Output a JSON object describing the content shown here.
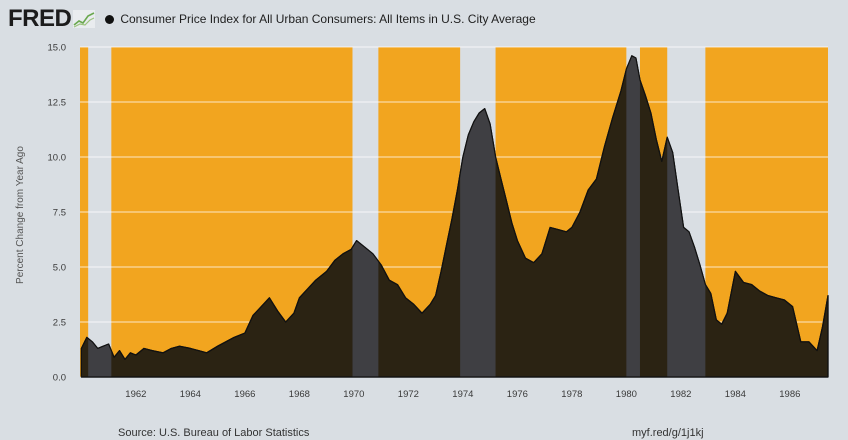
{
  "header": {
    "logo_text": "FRED",
    "series_title": "Consumer Price Index for All Urban Consumers: All Items in U.S. City Average"
  },
  "footer": {
    "source": "Source: U.S. Bureau of Labor Statistics",
    "link": "myf.red/g/1j1kj"
  },
  "colors": {
    "background": "#d9dee3",
    "expansion_band": "#f2a51f",
    "recession_band": "#d9dee3",
    "area_fill": "#2b2313",
    "area_fill_recession": "#3f3f43",
    "line": "#111111",
    "grid": "#ffffff"
  },
  "chart_data": {
    "type": "area",
    "title": "Consumer Price Index for All Urban Consumers: All Items in U.S. City Average",
    "ylabel": "Percent Change from Year Ago",
    "xlabel": "",
    "xlim": [
      1959.95,
      1987.4
    ],
    "ylim": [
      0,
      15
    ],
    "y_ticks": [
      "0.0",
      "2.5",
      "5.0",
      "7.5",
      "10.0",
      "12.5",
      "15.0"
    ],
    "x_ticks": [
      "1962",
      "1964",
      "1966",
      "1968",
      "1970",
      "1972",
      "1974",
      "1976",
      "1978",
      "1980",
      "1982",
      "1984",
      "1986"
    ],
    "grid": true,
    "recessions": [
      {
        "start": 1960.25,
        "end": 1961.1
      },
      {
        "start": 1969.95,
        "end": 1970.9
      },
      {
        "start": 1973.9,
        "end": 1975.2
      },
      {
        "start": 1980.0,
        "end": 1980.5
      },
      {
        "start": 1981.5,
        "end": 1982.9
      }
    ],
    "series": [
      {
        "x": [
          1960.0,
          1960.2,
          1960.4,
          1960.6,
          1960.8,
          1961.0,
          1961.2,
          1961.4,
          1961.6,
          1961.8,
          1962.0,
          1962.3,
          1962.6,
          1963.0,
          1963.3,
          1963.6,
          1964.0,
          1964.3,
          1964.6,
          1965.0,
          1965.3,
          1965.6,
          1966.0,
          1966.3,
          1966.6,
          1966.9,
          1967.2,
          1967.5,
          1967.8,
          1968.0,
          1968.3,
          1968.6,
          1969.0,
          1969.3,
          1969.6,
          1969.9,
          1970.1,
          1970.4,
          1970.7,
          1971.0,
          1971.3,
          1971.6,
          1971.9,
          1972.2,
          1972.5,
          1972.8,
          1973.0,
          1973.2,
          1973.4,
          1973.6,
          1973.8,
          1974.0,
          1974.2,
          1974.4,
          1974.6,
          1974.8,
          1975.0,
          1975.2,
          1975.4,
          1975.6,
          1975.8,
          1976.0,
          1976.3,
          1976.6,
          1976.9,
          1977.2,
          1977.5,
          1977.8,
          1978.0,
          1978.3,
          1978.6,
          1978.9,
          1979.2,
          1979.5,
          1979.8,
          1980.0,
          1980.2,
          1980.35,
          1980.5,
          1980.7,
          1980.9,
          1981.1,
          1981.3,
          1981.5,
          1981.7,
          1981.9,
          1982.1,
          1982.3,
          1982.5,
          1982.7,
          1982.9,
          1983.1,
          1983.3,
          1983.5,
          1983.7,
          1984.0,
          1984.3,
          1984.6,
          1984.9,
          1985.2,
          1985.5,
          1985.8,
          1986.1,
          1986.4,
          1986.7,
          1987.0,
          1987.2,
          1987.4
        ],
        "values": [
          1.3,
          1.8,
          1.6,
          1.3,
          1.4,
          1.5,
          0.9,
          1.2,
          0.8,
          1.1,
          1.0,
          1.3,
          1.2,
          1.1,
          1.3,
          1.4,
          1.3,
          1.2,
          1.1,
          1.4,
          1.6,
          1.8,
          2.0,
          2.8,
          3.2,
          3.6,
          3.0,
          2.5,
          2.9,
          3.6,
          4.0,
          4.4,
          4.8,
          5.3,
          5.6,
          5.8,
          6.2,
          5.9,
          5.6,
          5.1,
          4.4,
          4.2,
          3.6,
          3.3,
          2.9,
          3.3,
          3.7,
          4.8,
          6.0,
          7.2,
          8.5,
          10.0,
          11.0,
          11.6,
          12.0,
          12.2,
          11.5,
          10.0,
          9.0,
          8.0,
          7.0,
          6.2,
          5.4,
          5.2,
          5.6,
          6.8,
          6.7,
          6.6,
          6.8,
          7.5,
          8.5,
          9.0,
          10.5,
          11.8,
          13.0,
          14.0,
          14.6,
          14.5,
          13.5,
          12.8,
          12.0,
          10.8,
          9.8,
          10.9,
          10.2,
          8.5,
          6.8,
          6.6,
          5.9,
          5.1,
          4.2,
          3.8,
          2.6,
          2.4,
          2.9,
          4.8,
          4.3,
          4.2,
          3.9,
          3.7,
          3.6,
          3.5,
          3.2,
          1.6,
          1.6,
          1.2,
          2.3,
          3.7
        ]
      }
    ]
  }
}
